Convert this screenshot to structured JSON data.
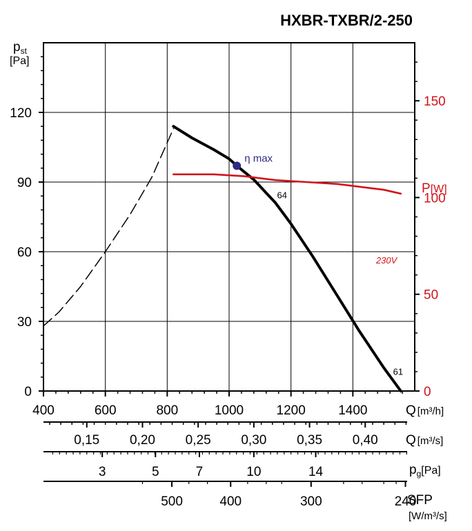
{
  "chart_data": {
    "type": "line",
    "title": "HXBR-TXBR/2-250",
    "y_axis": {
      "label_main": "p",
      "label_sub": "st",
      "unit": "[Pa]",
      "range": [
        0,
        150
      ],
      "ticks": [
        0,
        30,
        60,
        90,
        120
      ]
    },
    "y2_axis": {
      "label_main": "P",
      "unit": "[W]",
      "range": [
        0,
        180
      ],
      "ticks": [
        0,
        50,
        100,
        150
      ],
      "color": "#d0141b"
    },
    "x_axis": {
      "label_main": "Q",
      "unit": "[m³/h]",
      "range": [
        400,
        1600
      ],
      "ticks": [
        400,
        600,
        800,
        1000,
        1200,
        1400
      ]
    },
    "scale_q_m3s": {
      "label_main": "Q",
      "unit": "[m³/s]",
      "ticks": [
        "0,15",
        "0,20",
        "0,25",
        "0,30",
        "0,35",
        "0,40"
      ],
      "values": [
        0.15,
        0.2,
        0.25,
        0.3,
        0.35,
        0.4
      ]
    },
    "scale_pg": {
      "label_main": "p",
      "label_sub": "g",
      "unit": "[Pa]",
      "ticks": [
        "3",
        "5",
        "7",
        "10",
        "14"
      ],
      "q_values": [
        590,
        762,
        904,
        1080,
        1280
      ]
    },
    "scale_sfp": {
      "label_main": "SFP",
      "unit": "[W/m³/s]",
      "ticks": [
        "500",
        "400",
        "300",
        "240"
      ],
      "q_values": [
        815,
        1005,
        1265,
        1570
      ]
    },
    "series": [
      {
        "name": "",
        "style": "solid",
        "color": "#000000",
        "axis": "left",
        "points": [
          [
            820,
            114
          ],
          [
            880,
            109
          ],
          [
            950,
            104
          ],
          [
            1000,
            100
          ],
          [
            1025,
            97
          ],
          [
            1080,
            91
          ],
          [
            1150,
            81
          ],
          [
            1200,
            72
          ],
          [
            1270,
            58
          ],
          [
            1350,
            41
          ],
          [
            1420,
            26
          ],
          [
            1500,
            10
          ],
          [
            1555,
            0
          ]
        ]
      },
      {
        "name": "",
        "style": "dashed",
        "color": "#000000",
        "axis": "left",
        "points": [
          [
            400,
            28
          ],
          [
            450,
            34
          ],
          [
            520,
            45
          ],
          [
            600,
            60
          ],
          [
            680,
            76
          ],
          [
            750,
            92
          ],
          [
            820,
            113
          ]
        ]
      },
      {
        "name": "230V",
        "style": "solid",
        "color": "#d0141b",
        "axis": "right",
        "points": [
          [
            820,
            112
          ],
          [
            950,
            112
          ],
          [
            1050,
            111
          ],
          [
            1150,
            109
          ],
          [
            1250,
            108
          ],
          [
            1350,
            107
          ],
          [
            1450,
            105
          ],
          [
            1500,
            104
          ],
          [
            1555,
            102
          ]
        ]
      }
    ],
    "annotations": [
      {
        "text": "η max",
        "q": 1025,
        "p": 97,
        "marker": "dot",
        "color": "#2e2a86"
      },
      {
        "text": "64",
        "q": 1155,
        "p": 83
      },
      {
        "text": "61",
        "q": 1530,
        "p": 7
      },
      {
        "text": "230V",
        "q": 1475,
        "p": 55
      }
    ],
    "grid": true
  }
}
